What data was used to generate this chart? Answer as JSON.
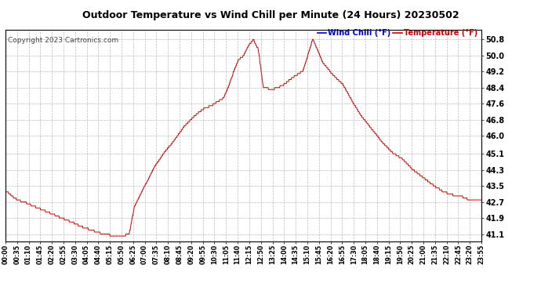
{
  "title": "Outdoor Temperature vs Wind Chill per Minute (24 Hours) 20230502",
  "copyright": "Copyright 2023 Cartronics.com",
  "legend_wind_chill": "Wind Chill (°F)",
  "legend_temperature": "Temperature (°F)",
  "line_color": "#cc0000",
  "wind_chill_color": "#0000cc",
  "temp_color": "#cc0000",
  "background_color": "#ffffff",
  "grid_color": "#aaaaaa",
  "yticks": [
    41.1,
    41.9,
    42.7,
    43.5,
    44.3,
    45.1,
    46.0,
    46.8,
    47.6,
    48.4,
    49.2,
    50.0,
    50.8
  ],
  "ylim": [
    40.75,
    51.3
  ],
  "xtick_labels": [
    "00:00",
    "00:35",
    "01:10",
    "01:45",
    "02:20",
    "02:55",
    "03:30",
    "04:05",
    "04:40",
    "05:15",
    "05:50",
    "06:25",
    "07:00",
    "07:35",
    "08:10",
    "08:45",
    "09:20",
    "09:55",
    "10:30",
    "11:05",
    "11:40",
    "12:15",
    "12:50",
    "13:25",
    "14:00",
    "14:35",
    "15:10",
    "15:45",
    "16:20",
    "16:55",
    "17:30",
    "18:05",
    "18:40",
    "19:15",
    "19:50",
    "20:25",
    "21:00",
    "21:35",
    "22:10",
    "22:45",
    "23:20",
    "23:55"
  ],
  "n_minutes": 1440,
  "t_ctrl": [
    0,
    0.25,
    0.5,
    1.0,
    1.5,
    2.0,
    2.5,
    3.0,
    3.5,
    4.0,
    4.5,
    5.0,
    5.25,
    5.5,
    5.75,
    6.0,
    6.25,
    6.5,
    7.0,
    7.5,
    8.0,
    8.5,
    9.0,
    9.5,
    10.0,
    10.5,
    11.0,
    11.25,
    11.5,
    11.75,
    12.0,
    12.25,
    12.5,
    12.75,
    13.0,
    13.5,
    14.0,
    14.5,
    15.0,
    15.25,
    15.5,
    16.0,
    16.5,
    17.0,
    17.5,
    18.0,
    18.5,
    19.0,
    19.5,
    20.0,
    20.5,
    21.0,
    21.5,
    22.0,
    22.5,
    23.0,
    23.5,
    24.0
  ],
  "v_ctrl": [
    43.3,
    43.1,
    42.9,
    42.7,
    42.5,
    42.3,
    42.1,
    41.9,
    41.7,
    41.5,
    41.3,
    41.15,
    41.1,
    41.1,
    41.1,
    41.1,
    41.2,
    42.5,
    43.5,
    44.5,
    45.2,
    45.8,
    46.5,
    47.0,
    47.4,
    47.6,
    47.9,
    48.5,
    49.2,
    49.8,
    50.0,
    50.5,
    50.8,
    50.3,
    48.4,
    48.3,
    48.5,
    48.9,
    49.2,
    50.0,
    50.8,
    49.6,
    49.0,
    48.5,
    47.6,
    46.8,
    46.2,
    45.6,
    45.1,
    44.8,
    44.3,
    43.9,
    43.5,
    43.2,
    43.0,
    42.9,
    42.7,
    42.7
  ]
}
